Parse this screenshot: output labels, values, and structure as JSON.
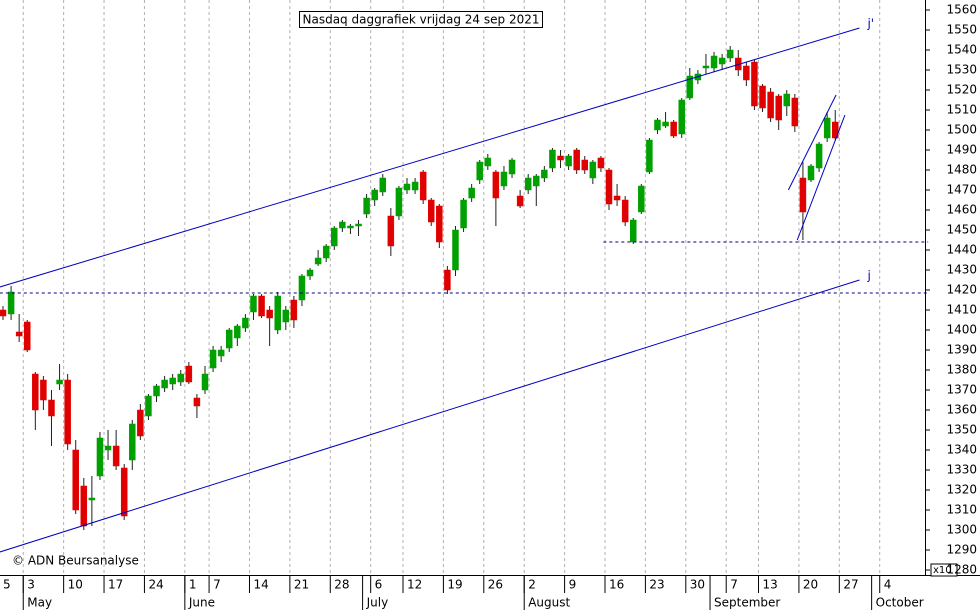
{
  "chart_data": {
    "type": "candlestick",
    "title": "Nasdaq daggrafiek vrijdag 24 sep 2021",
    "credit": "© ADN Beursanalyse",
    "axis_note": "x10",
    "up_color": "#00a000",
    "down_color": "#e00000",
    "wick_color": "#202020",
    "categories": [
      "5",
      null,
      null,
      "3",
      null,
      null,
      null,
      null,
      "10",
      null,
      null,
      null,
      null,
      "17",
      null,
      null,
      null,
      null,
      "24",
      null,
      null,
      null,
      null,
      "1",
      null,
      null,
      "7",
      null,
      null,
      null,
      null,
      "14",
      null,
      null,
      null,
      null,
      "21",
      null,
      null,
      null,
      null,
      "28",
      null,
      null,
      null,
      null,
      "6",
      null,
      null,
      null,
      "12",
      null,
      null,
      null,
      null,
      "19",
      null,
      null,
      null,
      null,
      "26",
      null,
      null,
      null,
      null,
      "2",
      null,
      null,
      null,
      null,
      "9",
      null,
      null,
      null,
      null,
      "16",
      null,
      null,
      null,
      null,
      "23",
      null,
      null,
      null,
      null,
      "30",
      null,
      null,
      null,
      null,
      "7",
      null,
      null,
      null,
      "13",
      null,
      null,
      null,
      null,
      "20",
      null,
      null,
      null,
      null,
      "27",
      null,
      null,
      null,
      null,
      "4",
      null,
      null,
      null,
      null,
      null
    ],
    "months": [
      null,
      null,
      null,
      "May",
      null,
      null,
      null,
      null,
      null,
      null,
      null,
      null,
      null,
      null,
      null,
      null,
      null,
      null,
      null,
      null,
      null,
      null,
      null,
      "June",
      null,
      null,
      null,
      null,
      null,
      null,
      null,
      null,
      null,
      null,
      null,
      null,
      null,
      null,
      null,
      null,
      null,
      null,
      null,
      null,
      null,
      "July",
      null,
      null,
      null,
      null,
      null,
      null,
      null,
      null,
      null,
      null,
      null,
      null,
      null,
      null,
      null,
      null,
      null,
      null,
      null,
      "August",
      null,
      null,
      null,
      null,
      null,
      null,
      null,
      null,
      null,
      null,
      null,
      null,
      null,
      null,
      null,
      null,
      null,
      null,
      null,
      null,
      null,
      null,
      "September",
      null,
      null,
      null,
      null,
      null,
      null,
      null,
      null,
      null,
      null,
      null,
      null,
      null,
      null,
      null,
      null,
      null,
      null,
      null,
      "October",
      null,
      null,
      null,
      null,
      null,
      null
    ],
    "open": [
      1410,
      1408,
      1399,
      1404,
      1378,
      1375,
      1365,
      1373,
      1375,
      1340,
      1322,
      1315,
      1327,
      1340,
      1342,
      1331,
      1335,
      1360,
      1357,
      1367,
      1371,
      1373,
      1374,
      1382,
      1366,
      1370,
      1381,
      1387,
      1391,
      1396,
      1401,
      1409,
      1417,
      1410,
      1400,
      1404,
      1415,
      1415,
      1427,
      1433,
      1436,
      1442,
      1451,
      1451,
      1452,
      1458,
      1465,
      1469,
      1457,
      1457,
      1470,
      1470,
      1479,
      1465,
      1462,
      1430,
      1430,
      1451,
      1466,
      1475,
      1482,
      1479,
      1472,
      1478,
      1467,
      1470,
      1472,
      1476,
      1481,
      1487,
      1482,
      1490,
      1485,
      1476,
      1486,
      1480,
      1467,
      1465,
      1444,
      1459,
      1479,
      1500,
      1502,
      1504,
      1498,
      1516,
      1525,
      1531,
      1531,
      1533,
      1536,
      1536,
      1532,
      1534,
      1522,
      1519,
      1517,
      1512,
      1516,
      1476,
      1475,
      1481,
      1496,
      1504,
      null,
      null,
      null,
      null,
      null,
      null,
      null,
      null,
      null,
      null,
      null
    ],
    "high": [
      1412,
      1422,
      1408,
      1405,
      1379,
      1377,
      1370,
      1383,
      1378,
      1345,
      1326,
      1327,
      1349,
      1350,
      1350,
      1333,
      1355,
      1363,
      1368,
      1373,
      1377,
      1378,
      1380,
      1384,
      1368,
      1382,
      1392,
      1392,
      1401,
      1403,
      1408,
      1418,
      1418,
      1412,
      1419,
      1412,
      1417,
      1428,
      1431,
      1440,
      1443,
      1452,
      1455,
      1453,
      1455,
      1468,
      1471,
      1478,
      1461,
      1472,
      1476,
      1476,
      1480,
      1466,
      1463,
      1432,
      1452,
      1466,
      1473,
      1485,
      1488,
      1480,
      1482,
      1486,
      1470,
      1478,
      1478,
      1482,
      1491,
      1490,
      1488,
      1491,
      1487,
      1485,
      1487,
      1481,
      1473,
      1467,
      1456,
      1473,
      1496,
      1506,
      1509,
      1505,
      1516,
      1531,
      1530,
      1538,
      1539,
      1538,
      1542,
      1540,
      1534,
      1535,
      1523,
      1521,
      1518,
      1520,
      1518,
      1484,
      1483,
      1494,
      1509,
      1510,
      null,
      null,
      null,
      null,
      null,
      null,
      null,
      null,
      null,
      null,
      null
    ],
    "low": [
      1405,
      1405,
      1394,
      1389,
      1350,
      1360,
      1342,
      1370,
      1340,
      1308,
      1300,
      1302,
      1325,
      1335,
      1330,
      1305,
      1330,
      1345,
      1355,
      1364,
      1369,
      1370,
      1372,
      1373,
      1356,
      1368,
      1379,
      1384,
      1389,
      1392,
      1399,
      1405,
      1406,
      1392,
      1398,
      1400,
      1401,
      1412,
      1425,
      1432,
      1434,
      1440,
      1449,
      1448,
      1447,
      1456,
      1462,
      1467,
      1437,
      1455,
      1468,
      1468,
      1463,
      1452,
      1441,
      1418,
      1427,
      1449,
      1464,
      1473,
      1480,
      1452,
      1470,
      1476,
      1461,
      1468,
      1462,
      1474,
      1479,
      1481,
      1480,
      1478,
      1478,
      1473,
      1479,
      1460,
      1462,
      1452,
      1443,
      1458,
      1478,
      1498,
      1501,
      1496,
      1496,
      1515,
      1523,
      1528,
      1529,
      1530,
      1534,
      1527,
      1522,
      1510,
      1509,
      1504,
      1500,
      1507,
      1499,
      1445,
      1474,
      1479,
      1494,
      1495,
      null,
      null,
      null,
      null,
      null,
      null,
      null,
      null,
      null,
      null,
      null
    ],
    "close": [
      1407,
      1419,
      1397,
      1390,
      1360,
      1365,
      1357,
      1375,
      1343,
      1310,
      1302,
      1316,
      1346,
      1342,
      1332,
      1307,
      1353,
      1347,
      1367,
      1372,
      1375,
      1376,
      1378,
      1374,
      1362,
      1378,
      1390,
      1390,
      1400,
      1402,
      1406,
      1417,
      1407,
      1406,
      1417,
      1410,
      1405,
      1427,
      1430,
      1436,
      1442,
      1451,
      1454,
      1452,
      1453,
      1466,
      1470,
      1476,
      1442,
      1471,
      1473,
      1474,
      1465,
      1454,
      1444,
      1420,
      1450,
      1465,
      1471,
      1484,
      1486,
      1466,
      1479,
      1485,
      1462,
      1476,
      1477,
      1480,
      1490,
      1485,
      1487,
      1480,
      1480,
      1484,
      1481,
      1463,
      1465,
      1454,
      1455,
      1472,
      1495,
      1505,
      1504,
      1497,
      1515,
      1527,
      1528,
      1532,
      1537,
      1536,
      1540,
      1530,
      1525,
      1512,
      1511,
      1506,
      1505,
      1518,
      1502,
      1459,
      1482,
      1493,
      1506,
      1496,
      null,
      null,
      null,
      null,
      null,
      null,
      null,
      null,
      null,
      null,
      null
    ],
    "ylim": [
      1277.5,
      1565
    ],
    "yticks": [
      1280,
      1290,
      1300,
      1310,
      1320,
      1330,
      1340,
      1350,
      1360,
      1370,
      1380,
      1390,
      1400,
      1410,
      1420,
      1430,
      1440,
      1450,
      1460,
      1470,
      1480,
      1490,
      1500,
      1510,
      1520,
      1530,
      1540,
      1550,
      1560
    ],
    "lines": [
      {
        "name": "j'",
        "color": "#0000c0",
        "dashed": false,
        "x": [
          -0.4,
          106
        ],
        "y": [
          1421.5,
          1551
        ]
      },
      {
        "name": "j",
        "color": "#0000c0",
        "dashed": false,
        "x": [
          -0.4,
          106
        ],
        "y": [
          1289,
          1425
        ]
      },
      {
        "color": "#000080",
        "dashed": true,
        "x": [
          -0.4,
          114.5
        ],
        "y": [
          1418.5,
          1418.5
        ]
      },
      {
        "color": "#000080",
        "dashed": true,
        "x": [
          74.3,
          114.5
        ],
        "y": [
          1444,
          1444
        ]
      },
      {
        "color": "#0000c0",
        "dashed": false,
        "x": [
          97.2,
          103.1
        ],
        "y": [
          1470,
          1517.5
        ]
      },
      {
        "color": "#0000c0",
        "dashed": false,
        "x": [
          98.3,
          104.2
        ],
        "y": [
          1445,
          1507.5
        ]
      }
    ]
  }
}
